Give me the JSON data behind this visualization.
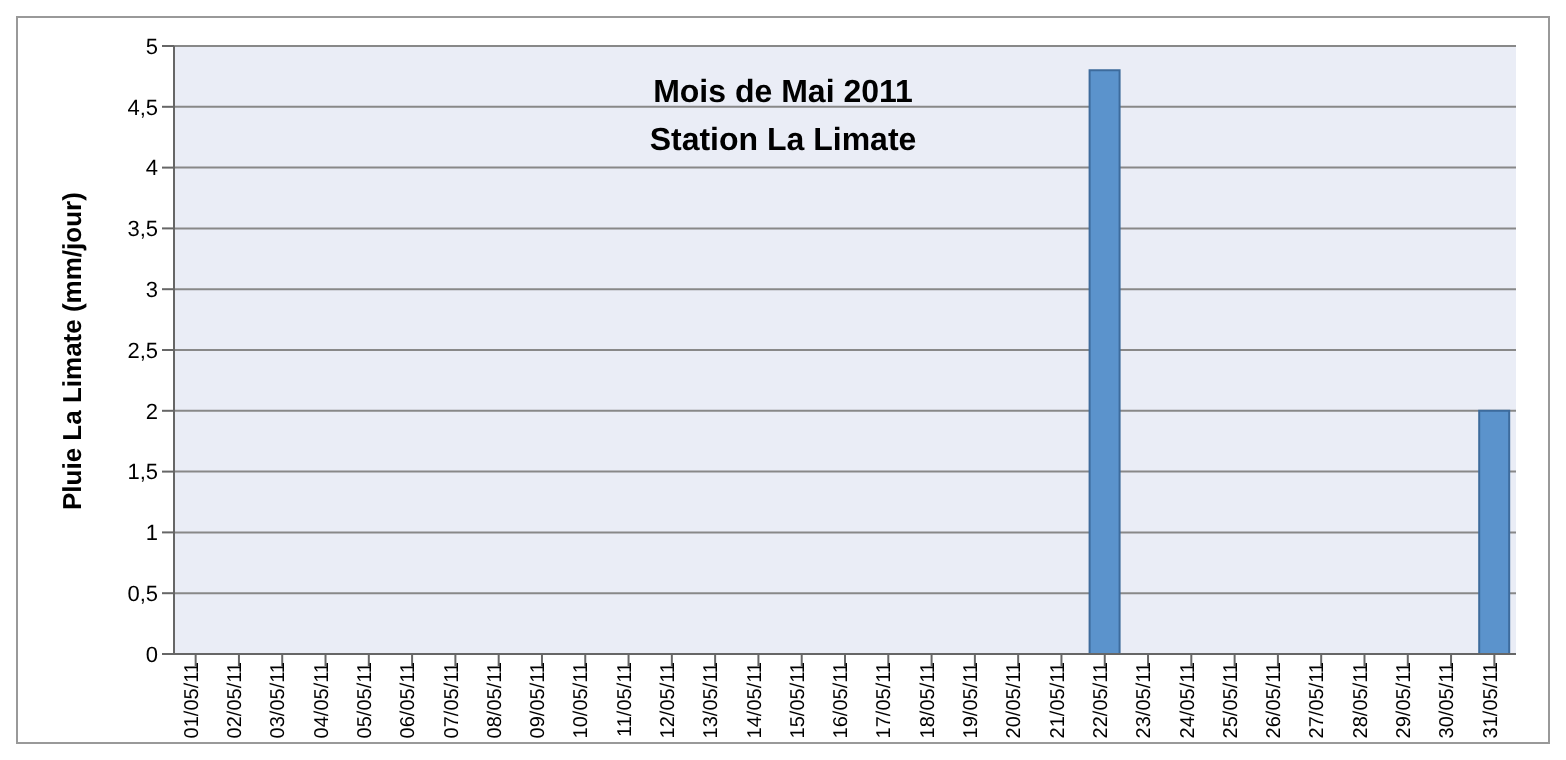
{
  "chart_data": {
    "type": "bar",
    "title": "Mois de Mai 2011",
    "subtitle": "Station La Limate",
    "ylabel": "Pluie La Limate (mm/jour)",
    "categories": [
      "01/05/11",
      "02/05/11",
      "03/05/11",
      "04/05/11",
      "05/05/11",
      "06/05/11",
      "07/05/11",
      "08/05/11",
      "09/05/11",
      "10/05/11",
      "11/05/11",
      "12/05/11",
      "13/05/11",
      "14/05/11",
      "15/05/11",
      "16/05/11",
      "17/05/11",
      "18/05/11",
      "19/05/11",
      "20/05/11",
      "21/05/11",
      "22/05/11",
      "23/05/11",
      "24/05/11",
      "25/05/11",
      "26/05/11",
      "27/05/11",
      "28/05/11",
      "29/05/11",
      "30/05/11",
      "31/05/11"
    ],
    "values": [
      0,
      0,
      0,
      0,
      0,
      0,
      0,
      0,
      0,
      0,
      0,
      0,
      0,
      0,
      0,
      0,
      0,
      0,
      0,
      0,
      0,
      4.8,
      0,
      0,
      0,
      0,
      0,
      0,
      0,
      0,
      2
    ],
    "color": "#5b93cc",
    "ylim": [
      0,
      5
    ],
    "yticks": [
      0,
      {
        "value": 0.5,
        "label": "0,5"
      },
      1,
      {
        "value": 1.5,
        "label": "1,5"
      },
      2,
      {
        "value": 2.5,
        "label": "2,5"
      },
      3,
      {
        "value": 3.5,
        "label": "3,5"
      },
      4,
      {
        "value": 4.5,
        "label": "4,5"
      },
      5
    ],
    "grid": "y",
    "legend": false
  }
}
